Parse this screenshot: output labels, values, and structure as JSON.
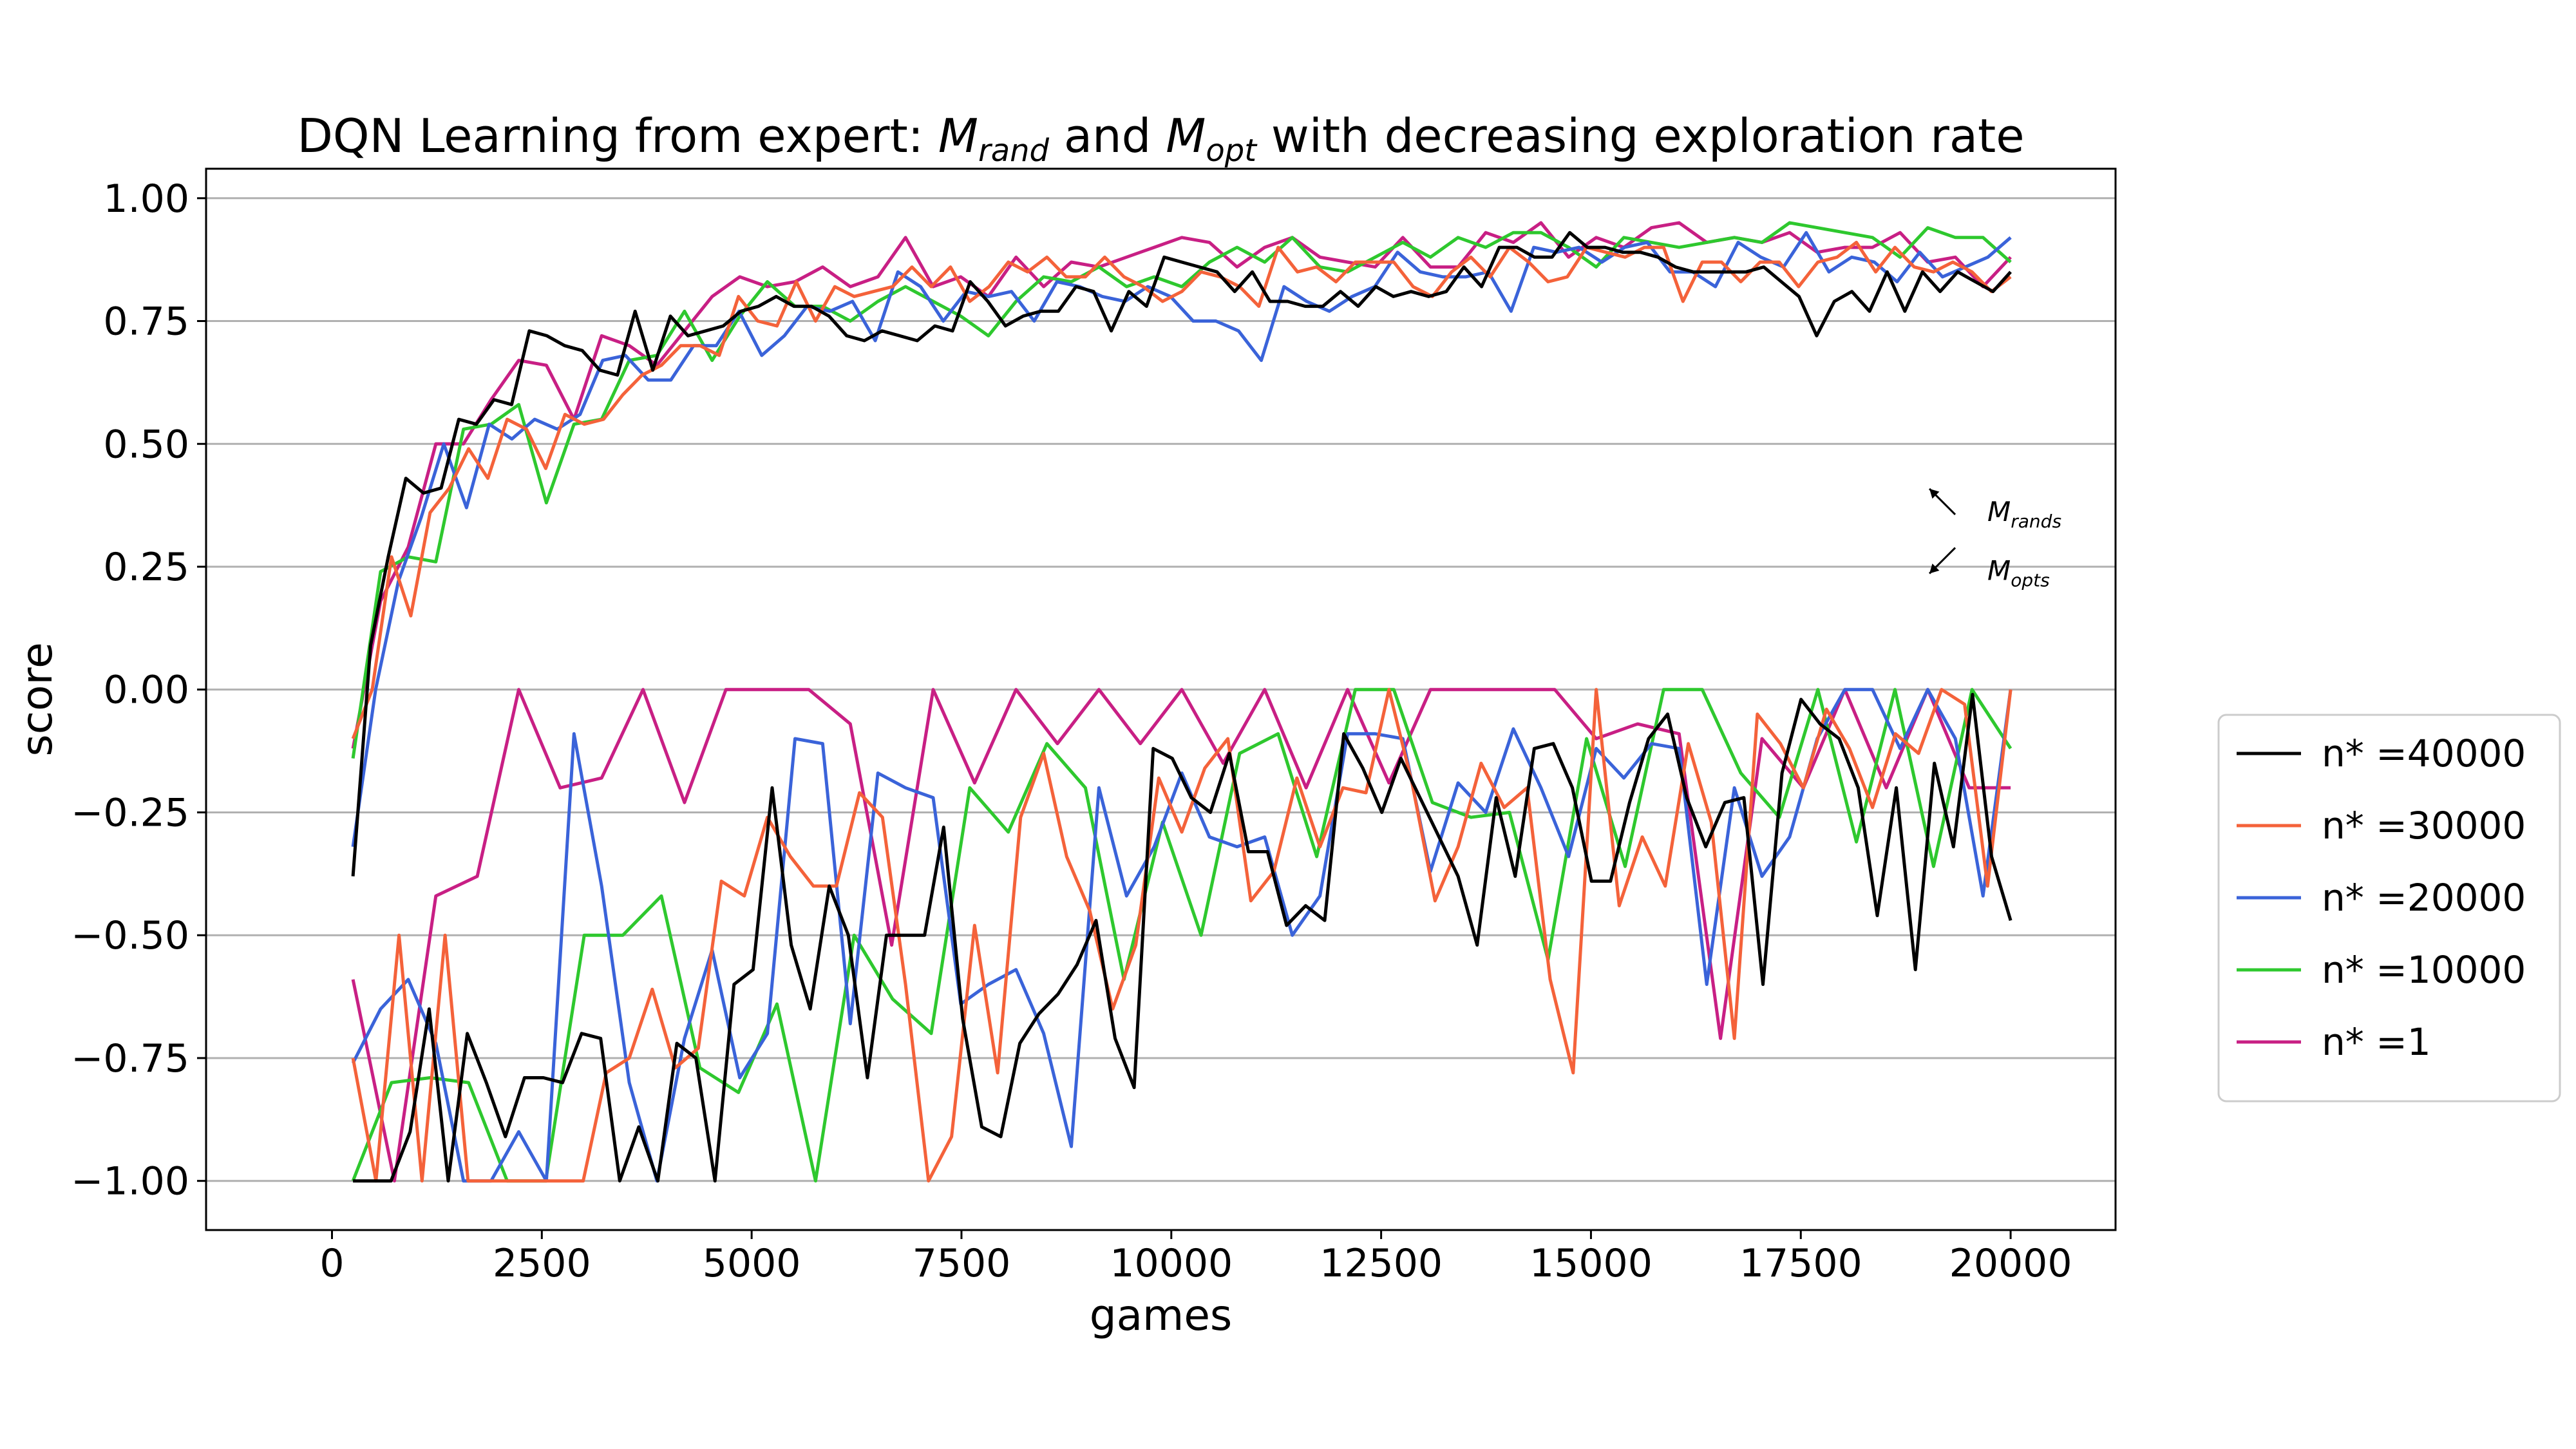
{
  "chart_data": {
    "type": "line",
    "title": {
      "prefix": "DQN Learning from expert: ",
      "m1": "M",
      "m1_sub": "rand",
      "middle": " and ",
      "m2": "M",
      "m2_sub": "opt",
      "suffix": " with decreasing exploration rate"
    },
    "xlabel": "games",
    "ylabel": "score",
    "xlim": [
      -1500,
      21250
    ],
    "ylim": [
      -1.1,
      1.06
    ],
    "xticks": [
      0,
      2500,
      5000,
      7500,
      10000,
      12500,
      15000,
      17500,
      20000
    ],
    "xtick_labels": [
      "0",
      "2500",
      "5000",
      "7500",
      "10000",
      "12500",
      "15000",
      "17500",
      "20000"
    ],
    "yticks": [
      1.0,
      0.75,
      0.5,
      0.25,
      0.0,
      -0.25,
      -0.5,
      -0.75,
      -1.0
    ],
    "ytick_labels": [
      "1.00",
      "0.75",
      "0.50",
      "0.25",
      "0.00",
      "−0.25",
      "−0.50",
      "−0.75",
      "−1.00"
    ],
    "grid": "horizontal",
    "legend_position": "outside-right",
    "annotations": [
      {
        "base": "M",
        "sub": "rands",
        "arrow": "up-left",
        "x": 19800,
        "y": 0.33
      },
      {
        "base": "M",
        "sub": "opts",
        "arrow": "down-left",
        "x": 19800,
        "y": 0.21
      }
    ],
    "series": [
      {
        "name": "n* =40000",
        "color": "#000000",
        "x_start": 250,
        "x_step": 250,
        "rand": [
          -0.38,
          0.09,
          0.27,
          0.43,
          0.4,
          0.41,
          0.55,
          0.54,
          0.59,
          0.58,
          0.73,
          0.72,
          0.7,
          0.69,
          0.65,
          0.64,
          0.77,
          0.65,
          0.76,
          0.72,
          0.73,
          0.74,
          0.77,
          0.78,
          0.8,
          0.78,
          0.78,
          0.76,
          0.72,
          0.71,
          0.73,
          0.72,
          0.71,
          0.74,
          0.73,
          0.83,
          0.79,
          0.74,
          0.76,
          0.77,
          0.77,
          0.82,
          0.81,
          0.73,
          0.81,
          0.78,
          0.88,
          0.87,
          0.86,
          0.85,
          0.81,
          0.85,
          0.79,
          0.79,
          0.78,
          0.78,
          0.81,
          0.78,
          0.82,
          0.8,
          0.81,
          0.8,
          0.81,
          0.86,
          0.82,
          0.9,
          0.9,
          0.88,
          0.88,
          0.93,
          0.9,
          0.9,
          0.89,
          0.89,
          0.88,
          0.86,
          0.85,
          0.85,
          0.85,
          0.85,
          0.86,
          0.83,
          0.8,
          0.72,
          0.79,
          0.81,
          0.77,
          0.85,
          0.77,
          0.85,
          0.81,
          0.85,
          0.83,
          0.81,
          0.85
        ],
        "opt": [
          -1.0,
          -1.0,
          -1.0,
          -0.9,
          -0.65,
          -1.0,
          -0.7,
          -0.8,
          -0.91,
          -0.79,
          -0.79,
          -0.8,
          -0.7,
          -0.71,
          -1.0,
          -0.89,
          -1.0,
          -0.72,
          -0.75,
          -1.0,
          -0.6,
          -0.57,
          -0.2,
          -0.52,
          -0.65,
          -0.4,
          -0.5,
          -0.79,
          -0.5,
          -0.5,
          -0.5,
          -0.28,
          -0.67,
          -0.89,
          -0.91,
          -0.72,
          -0.66,
          -0.62,
          -0.56,
          -0.47,
          -0.71,
          -0.81,
          -0.12,
          -0.14,
          -0.22,
          -0.25,
          -0.13,
          -0.33,
          -0.33,
          -0.48,
          -0.44,
          -0.47,
          -0.09,
          -0.16,
          -0.25,
          -0.14,
          -0.22,
          -0.3,
          -0.38,
          -0.52,
          -0.22,
          -0.38,
          -0.12,
          -0.11,
          -0.2,
          -0.39,
          -0.39,
          -0.23,
          -0.1,
          -0.05,
          -0.22,
          -0.32,
          -0.23,
          -0.22,
          -0.6,
          -0.17,
          -0.02,
          -0.07,
          -0.1,
          -0.2,
          -0.46,
          -0.2,
          -0.57,
          -0.15,
          -0.32,
          -0.01,
          -0.34,
          -0.47
        ]
      },
      {
        "name": "n* =30000",
        "color": "#f4623a",
        "x_start": 250,
        "x_step": 250,
        "rand": [
          -0.1,
          0.0,
          0.27,
          0.15,
          0.36,
          0.41,
          0.49,
          0.43,
          0.55,
          0.53,
          0.45,
          0.56,
          0.54,
          0.55,
          0.6,
          0.64,
          0.66,
          0.7,
          0.7,
          0.68,
          0.8,
          0.75,
          0.74,
          0.83,
          0.75,
          0.82,
          0.8,
          0.81,
          0.82,
          0.86,
          0.82,
          0.86,
          0.79,
          0.82,
          0.87,
          0.85,
          0.88,
          0.84,
          0.84,
          0.88,
          0.84,
          0.82,
          0.79,
          0.81,
          0.85,
          0.84,
          0.82,
          0.78,
          0.9,
          0.85,
          0.86,
          0.83,
          0.87,
          0.87,
          0.87,
          0.82,
          0.8,
          0.85,
          0.88,
          0.84,
          0.9,
          0.87,
          0.83,
          0.84,
          0.9,
          0.89,
          0.88,
          0.9,
          0.9,
          0.79,
          0.87,
          0.87,
          0.83,
          0.87,
          0.87,
          0.82,
          0.87,
          0.88,
          0.91,
          0.85,
          0.9,
          0.86,
          0.85,
          0.87,
          0.85,
          0.81,
          0.84
        ],
        "opt": [
          -0.75,
          -1.0,
          -0.5,
          -1.0,
          -0.5,
          -1.0,
          -1.0,
          -1.0,
          -1.0,
          -1.0,
          -1.0,
          -0.78,
          -0.75,
          -0.61,
          -0.77,
          -0.73,
          -0.39,
          -0.42,
          -0.26,
          -0.34,
          -0.4,
          -0.4,
          -0.21,
          -0.26,
          -0.6,
          -1.0,
          -0.91,
          -0.48,
          -0.78,
          -0.26,
          -0.13,
          -0.34,
          -0.45,
          -0.65,
          -0.52,
          -0.18,
          -0.29,
          -0.16,
          -0.1,
          -0.43,
          -0.37,
          -0.18,
          -0.32,
          -0.2,
          -0.21,
          0.0,
          -0.19,
          -0.43,
          -0.32,
          -0.15,
          -0.24,
          -0.2,
          -0.59,
          -0.78,
          0.0,
          -0.44,
          -0.3,
          -0.4,
          -0.11,
          -0.27,
          -0.71,
          -0.05,
          -0.11,
          -0.2,
          -0.04,
          -0.12,
          -0.24,
          -0.09,
          -0.13,
          0.0,
          -0.03,
          -0.4,
          0.0
        ],
        "opt_x_start": 250
      },
      {
        "name": "n* =20000",
        "color": "#3a63d9",
        "x_start": 250,
        "x_step": 250,
        "rand": [
          -0.32,
          0.0,
          0.22,
          0.35,
          0.5,
          0.37,
          0.54,
          0.51,
          0.55,
          0.53,
          0.56,
          0.67,
          0.68,
          0.63,
          0.63,
          0.7,
          0.7,
          0.77,
          0.68,
          0.72,
          0.78,
          0.77,
          0.79,
          0.71,
          0.85,
          0.82,
          0.75,
          0.81,
          0.8,
          0.81,
          0.75,
          0.83,
          0.82,
          0.8,
          0.79,
          0.82,
          0.8,
          0.75,
          0.75,
          0.73,
          0.67,
          0.82,
          0.79,
          0.77,
          0.8,
          0.82,
          0.89,
          0.85,
          0.84,
          0.84,
          0.85,
          0.77,
          0.9,
          0.89,
          0.9,
          0.87,
          0.9,
          0.91,
          0.85,
          0.85,
          0.82,
          0.91,
          0.88,
          0.86,
          0.93,
          0.85,
          0.88,
          0.87,
          0.83,
          0.89,
          0.84,
          0.86,
          0.88,
          0.92
        ],
        "opt": [
          -0.76,
          -0.65,
          -0.59,
          -0.72,
          -1.0,
          -1.0,
          -0.9,
          -1.0,
          -0.09,
          -0.4,
          -0.8,
          -1.0,
          -0.71,
          -0.53,
          -0.79,
          -0.7,
          -0.1,
          -0.11,
          -0.68,
          -0.17,
          -0.2,
          -0.22,
          -0.64,
          -0.6,
          -0.57,
          -0.7,
          -0.93,
          -0.2,
          -0.42,
          -0.32,
          -0.17,
          -0.3,
          -0.32,
          -0.3,
          -0.5,
          -0.42,
          -0.09,
          -0.09,
          -0.1,
          -0.37,
          -0.19,
          -0.25,
          -0.08,
          -0.2,
          -0.34,
          -0.12,
          -0.18,
          -0.11,
          -0.12,
          -0.6,
          -0.2,
          -0.38,
          -0.3,
          -0.1,
          0.0,
          0.0,
          -0.12,
          0.0,
          -0.1,
          -0.42,
          0.0
        ],
        "opt_x_start": 250
      },
      {
        "name": "n* =10000",
        "color": "#2ec82e",
        "x_start": 250,
        "x_step": 250,
        "rand": [
          -0.14,
          0.24,
          0.27,
          0.26,
          0.53,
          0.54,
          0.58,
          0.38,
          0.54,
          0.55,
          0.67,
          0.68,
          0.77,
          0.67,
          0.76,
          0.83,
          0.78,
          0.78,
          0.75,
          0.79,
          0.82,
          0.79,
          0.76,
          0.72,
          0.79,
          0.84,
          0.83,
          0.86,
          0.82,
          0.84,
          0.82,
          0.87,
          0.9,
          0.87,
          0.92,
          0.86,
          0.85,
          0.88,
          0.91,
          0.88,
          0.92,
          0.9,
          0.93,
          0.93,
          0.9,
          0.86,
          0.92,
          0.91,
          0.9,
          0.91,
          0.92,
          0.91,
          0.95,
          0.94,
          0.93,
          0.92,
          0.88,
          0.94,
          0.92,
          0.92,
          0.87
        ],
        "opt": [
          -1.0,
          -0.8,
          -0.79,
          -0.8,
          -1.0,
          -1.0,
          -0.5,
          -0.5,
          -0.42,
          -0.77,
          -0.82,
          -0.64,
          -1.0,
          -0.5,
          -0.63,
          -0.7,
          -0.2,
          -0.29,
          -0.11,
          -0.2,
          -0.59,
          -0.27,
          -0.5,
          -0.13,
          -0.09,
          -0.34,
          0.0,
          0.0,
          -0.23,
          -0.26,
          -0.25,
          -0.55,
          -0.1,
          -0.36,
          0.0,
          0.0,
          -0.17,
          -0.26,
          0.0,
          -0.31,
          0.0,
          -0.36,
          0.0,
          -0.12
        ],
        "opt_x_start": 250
      },
      {
        "name": "n* =1",
        "color": "#c81f84",
        "x_start": 250,
        "x_step": 250,
        "rand": [
          -0.12,
          0.18,
          0.29,
          0.5,
          0.5,
          0.59,
          0.67,
          0.66,
          0.55,
          0.72,
          0.7,
          0.66,
          0.73,
          0.8,
          0.84,
          0.82,
          0.83,
          0.86,
          0.82,
          0.84,
          0.92,
          0.82,
          0.84,
          0.8,
          0.88,
          0.82,
          0.87,
          0.86,
          0.88,
          0.9,
          0.92,
          0.91,
          0.86,
          0.9,
          0.92,
          0.88,
          0.87,
          0.86,
          0.92,
          0.86,
          0.86,
          0.93,
          0.91,
          0.95,
          0.88,
          0.92,
          0.9,
          0.94,
          0.95,
          0.91,
          0.92,
          0.91,
          0.93,
          0.89,
          0.9,
          0.9,
          0.93,
          0.87,
          0.88,
          0.82,
          0.88
        ],
        "opt": [
          -0.59,
          -1.0,
          -0.42,
          -0.38,
          0.0,
          -0.2,
          -0.18,
          0.0,
          -0.23,
          0.0,
          0.0,
          0.0,
          -0.07,
          -0.52,
          0.0,
          -0.19,
          0.0,
          -0.11,
          0.0,
          -0.11,
          0.0,
          -0.15,
          0.0,
          -0.2,
          0.0,
          -0.19,
          0.0,
          0.0,
          0.0,
          0.0,
          -0.1,
          -0.07,
          -0.09,
          -0.71,
          -0.1,
          -0.2,
          0.0,
          -0.2,
          0.0,
          -0.2,
          -0.2
        ],
        "opt_x_start": 250
      }
    ]
  }
}
